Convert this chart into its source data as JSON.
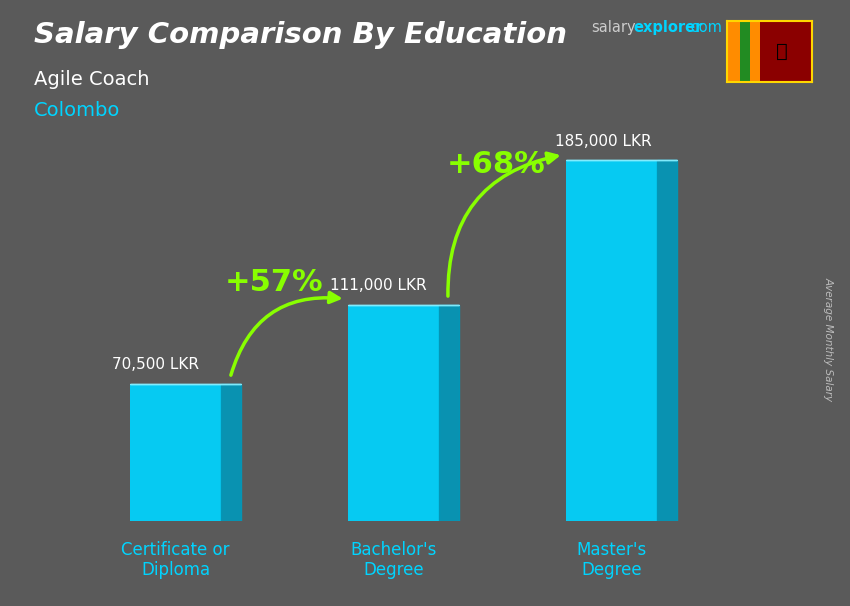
{
  "title_line1": "Salary Comparison By Education",
  "subtitle_job": "Agile Coach",
  "subtitle_city": "Colombo",
  "ylabel": "Average Monthly Salary",
  "categories": [
    "Certificate or\nDiploma",
    "Bachelor's\nDegree",
    "Master's\nDegree"
  ],
  "values": [
    70500,
    111000,
    185000
  ],
  "value_labels": [
    "70,500 LKR",
    "111,000 LKR",
    "185,000 LKR"
  ],
  "pct_labels": [
    "+57%",
    "+68%"
  ],
  "bar_color_face": "#00d4ff",
  "bar_color_side": "#0099bb",
  "bar_color_top": "#88eeff",
  "bg_color": "#5a5a5a",
  "title_color": "#ffffff",
  "subtitle_job_color": "#ffffff",
  "subtitle_city_color": "#00d4ff",
  "value_label_color": "#ffffff",
  "pct_color": "#88ff00",
  "arrow_color": "#88ff00",
  "ylim": [
    0,
    230000
  ],
  "bar_width": 0.42,
  "x_positions": [
    1,
    2,
    3
  ],
  "salary_color": "#cccccc",
  "watermark_salary": "salary",
  "watermark_explorer": "explorer",
  "watermark_com": ".com",
  "watermark_salary_color": "#cccccc",
  "watermark_explorer_color": "#00d4ff",
  "watermark_com_color": "#00d4ff"
}
